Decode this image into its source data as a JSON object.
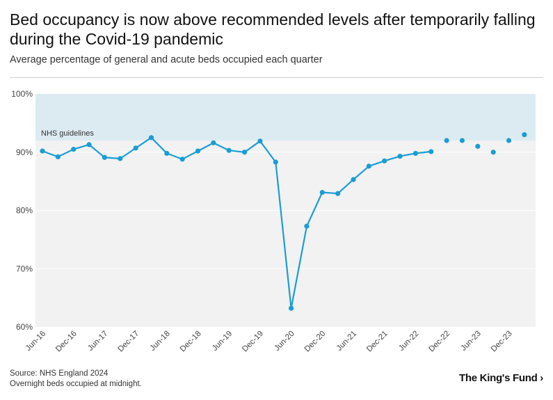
{
  "title": "Bed occupancy is now above recommended levels after temporarily falling during the Covid-19 pandemic",
  "subtitle": "Average percentage of general and acute beds occupied each quarter",
  "footer": {
    "source": "Source: NHS England 2024",
    "note": "Overnight beds occupied at midnight."
  },
  "logo": "The King's Fund ›",
  "colors": {
    "line": "#1a9dd4",
    "band": "#dcebf2",
    "plot_bg": "#f2f2f2",
    "grid": "#ffffff"
  },
  "chart_data": {
    "type": "line",
    "title": "Bed occupancy is now above recommended levels after temporarily falling during the Covid-19 pandemic",
    "ylabel": "Average percentage of general and acute beds occupied",
    "ylim": [
      60,
      100
    ],
    "yticks": [
      "60%",
      "70%",
      "80%",
      "90%",
      "100%"
    ],
    "ytick_values": [
      60,
      70,
      80,
      90,
      100
    ],
    "xtick_labels": [
      "Jun-16",
      "Dec-16",
      "Jun-17",
      "Dec-17",
      "Jun-18",
      "Dec-18",
      "Jun-19",
      "Dec-19",
      "Jun-20",
      "Dec-20",
      "Jun-21",
      "Dec-21",
      "Jun-22",
      "Dec-22",
      "Jun-23",
      "Dec-23"
    ],
    "quarters": 32,
    "band": {
      "label": "NHS guidelines",
      "from": 92,
      "to": 100
    },
    "series": [
      {
        "name": "Bed occupancy (connected)",
        "style": "line-markers",
        "x": [
          0,
          1,
          2,
          3,
          4,
          5,
          6,
          7,
          8,
          9,
          10,
          11,
          12,
          13,
          14,
          15,
          16,
          17,
          18,
          19,
          20,
          21,
          22,
          23,
          24,
          25,
          26
        ],
        "values": [
          90.2,
          89.2,
          90.5,
          91.3,
          89.1,
          88.9,
          90.7,
          92.5,
          89.8,
          88.8,
          90.2,
          91.6,
          90.3,
          90.0,
          91.9,
          88.3,
          63.2,
          77.3,
          83.1,
          82.9,
          85.3,
          87.6,
          88.5,
          89.3,
          89.8,
          90.1,
          null
        ]
      },
      {
        "name": "Bed occupancy (points)",
        "style": "markers",
        "x": [
          26,
          27,
          28,
          29,
          30,
          31
        ],
        "values": [
          92.0,
          92.0,
          91.0,
          90.0,
          92.0,
          93.0
        ]
      }
    ]
  }
}
